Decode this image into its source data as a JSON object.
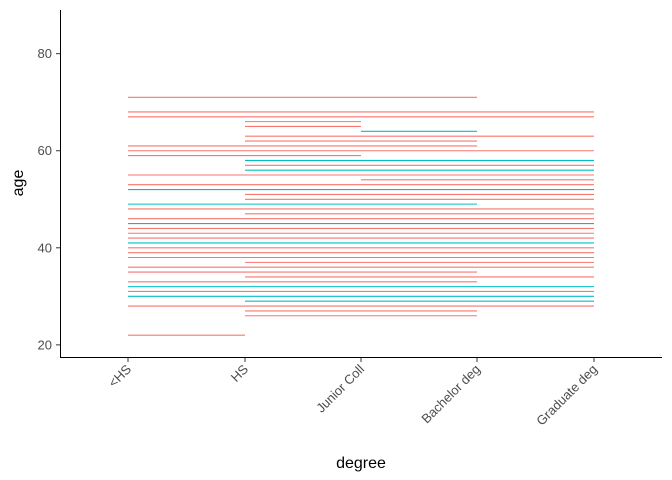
{
  "chart_data": {
    "type": "segment",
    "xlabel": "degree",
    "ylabel": "age",
    "categories": [
      "<HS",
      "HS",
      "Junior Coll",
      "Bachelor deg",
      "Graduate deg"
    ],
    "ylim": [
      17.5,
      89
    ],
    "yticks": [
      20,
      40,
      60,
      80
    ],
    "grid": false,
    "legend": "none",
    "colors": {
      "series_a": "#F8766D",
      "series_b": "#00BFC4"
    },
    "series": [
      {
        "color_key": "series_a",
        "segments": [
          {
            "from": "<HS",
            "to": "Bachelor deg",
            "y": 71
          },
          {
            "from": "<HS",
            "to": "Graduate deg",
            "y": 68
          },
          {
            "from": "<HS",
            "to": "Graduate deg",
            "y": 67
          },
          {
            "from": "HS",
            "to": "Junior Coll",
            "y": 66
          },
          {
            "from": "HS",
            "to": "Junior Coll",
            "y": 65
          },
          {
            "from": "HS",
            "to": "Graduate deg",
            "y": 63
          },
          {
            "from": "HS",
            "to": "Bachelor deg",
            "y": 62
          },
          {
            "from": "<HS",
            "to": "Bachelor deg",
            "y": 61
          },
          {
            "from": "<HS",
            "to": "Graduate deg",
            "y": 60
          },
          {
            "from": "<HS",
            "to": "Junior Coll",
            "y": 59
          },
          {
            "from": "HS",
            "to": "Graduate deg",
            "y": 57
          },
          {
            "from": "<HS",
            "to": "Graduate deg",
            "y": 55
          },
          {
            "from": "Junior Coll",
            "to": "Graduate deg",
            "y": 54
          },
          {
            "from": "<HS",
            "to": "Graduate deg",
            "y": 53
          },
          {
            "from": "HS",
            "to": "Graduate deg",
            "y": 51
          },
          {
            "from": "HS",
            "to": "Graduate deg",
            "y": 50
          },
          {
            "from": "<HS",
            "to": "Graduate deg",
            "y": 48
          },
          {
            "from": "HS",
            "to": "Graduate deg",
            "y": 47
          },
          {
            "from": "<HS",
            "to": "Graduate deg",
            "y": 46
          },
          {
            "from": "<HS",
            "to": "Graduate deg",
            "y": 44
          },
          {
            "from": "<HS",
            "to": "Graduate deg",
            "y": 43
          },
          {
            "from": "<HS",
            "to": "Graduate deg",
            "y": 42
          },
          {
            "from": "<HS",
            "to": "Graduate deg",
            "y": 40
          },
          {
            "from": "<HS",
            "to": "Graduate deg",
            "y": 39
          },
          {
            "from": "<HS",
            "to": "Graduate deg",
            "y": 38
          },
          {
            "from": "HS",
            "to": "Graduate deg",
            "y": 37
          },
          {
            "from": "<HS",
            "to": "Graduate deg",
            "y": 36
          },
          {
            "from": "<HS",
            "to": "Bachelor deg",
            "y": 35
          },
          {
            "from": "HS",
            "to": "Graduate deg",
            "y": 34
          },
          {
            "from": "<HS",
            "to": "Bachelor deg",
            "y": 33
          },
          {
            "from": "<HS",
            "to": "Graduate deg",
            "y": 31
          },
          {
            "from": "<HS",
            "to": "Graduate deg",
            "y": 28
          },
          {
            "from": "HS",
            "to": "Bachelor deg",
            "y": 27
          },
          {
            "from": "HS",
            "to": "Bachelor deg",
            "y": 26
          },
          {
            "from": "<HS",
            "to": "HS",
            "y": 22
          }
        ]
      },
      {
        "color_key": "series_b",
        "segments": [
          {
            "from": "Junior Coll",
            "to": "Bachelor deg",
            "y": 64
          },
          {
            "from": "HS",
            "to": "Graduate deg",
            "y": 58
          },
          {
            "from": "HS",
            "to": "Graduate deg",
            "y": 56
          },
          {
            "from": "<HS",
            "to": "Graduate deg",
            "y": 52
          },
          {
            "from": "<HS",
            "to": "Bachelor deg",
            "y": 49
          },
          {
            "from": "<HS",
            "to": "Graduate deg",
            "y": 45
          },
          {
            "from": "<HS",
            "to": "Graduate deg",
            "y": 41
          },
          {
            "from": "<HS",
            "to": "Graduate deg",
            "y": 32
          },
          {
            "from": "<HS",
            "to": "Graduate deg",
            "y": 30
          },
          {
            "from": "HS",
            "to": "Graduate deg",
            "y": 29
          }
        ]
      }
    ]
  }
}
